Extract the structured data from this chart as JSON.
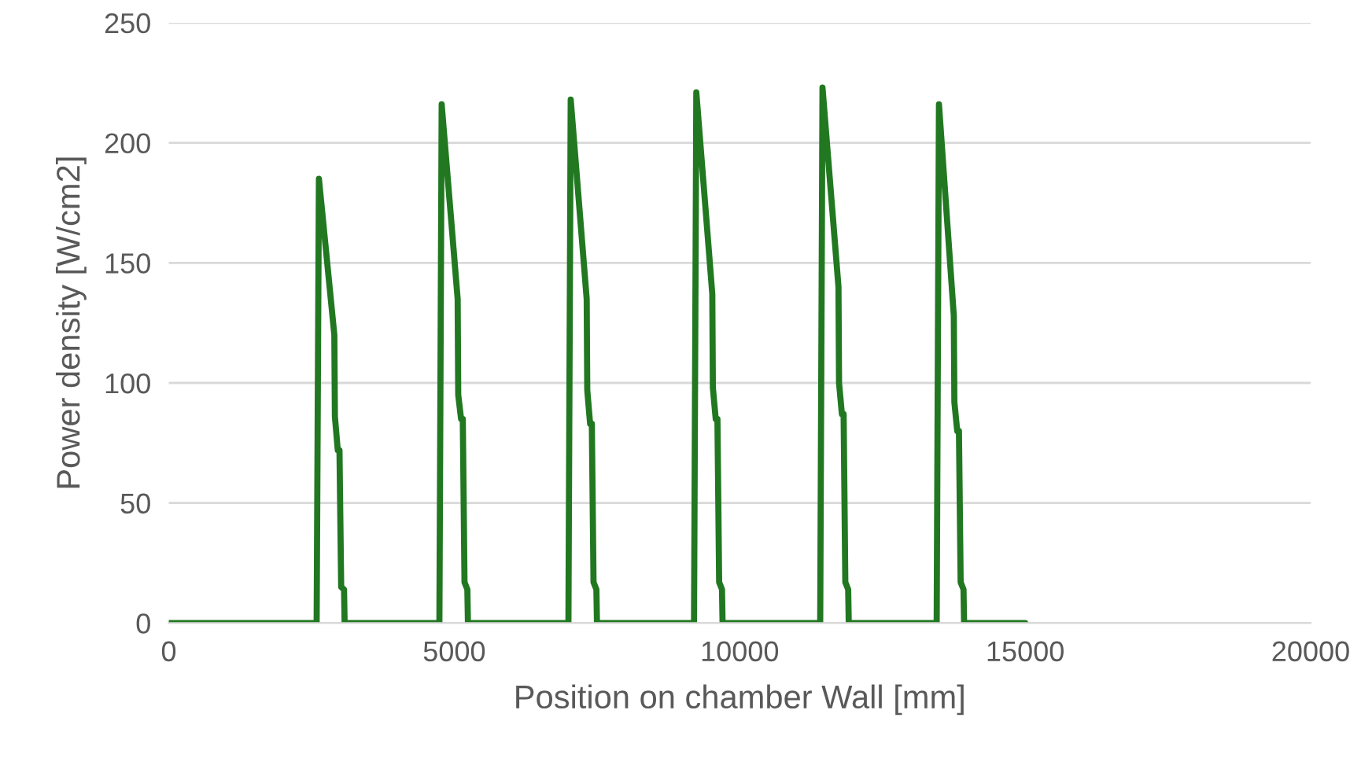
{
  "chart_data": {
    "type": "line",
    "xlabel": "Position on chamber Wall [mm]",
    "ylabel": "Power density [W/cm2]",
    "xlim": [
      0,
      20000
    ],
    "xticks": [
      0,
      5000,
      10000,
      15000,
      20000
    ],
    "ylim": [
      0,
      250
    ],
    "yticks": [
      0,
      50,
      100,
      150,
      200,
      250
    ],
    "grid": "y",
    "marker": "none",
    "line_style": "solid",
    "series": [
      {
        "color": "#217821",
        "x": [
          0,
          2590,
          2630,
          2900,
          2910,
          2960,
          2990,
          3020,
          3070,
          3080,
          4740,
          4780,
          5060,
          5070,
          5120,
          5150,
          5180,
          5230,
          5240,
          7000,
          7040,
          7320,
          7330,
          7380,
          7410,
          7440,
          7490,
          7500,
          9200,
          9240,
          9520,
          9530,
          9580,
          9610,
          9640,
          9690,
          9700,
          11410,
          11450,
          11730,
          11740,
          11790,
          11820,
          11850,
          11900,
          11910,
          13450,
          13490,
          13750,
          13760,
          13810,
          13840,
          13870,
          13920,
          13930,
          15000
        ],
        "values": [
          0,
          0,
          185,
          120,
          86,
          72,
          72,
          15,
          14,
          0,
          0,
          216,
          135,
          95,
          85,
          85,
          17,
          14,
          0,
          0,
          218,
          135,
          97,
          83,
          83,
          17,
          14,
          0,
          0,
          221,
          137,
          98,
          85,
          85,
          17,
          14,
          0,
          0,
          223,
          140,
          100,
          87,
          87,
          17,
          14,
          0,
          0,
          216,
          128,
          92,
          80,
          80,
          17,
          14,
          0,
          0
        ]
      }
    ]
  }
}
